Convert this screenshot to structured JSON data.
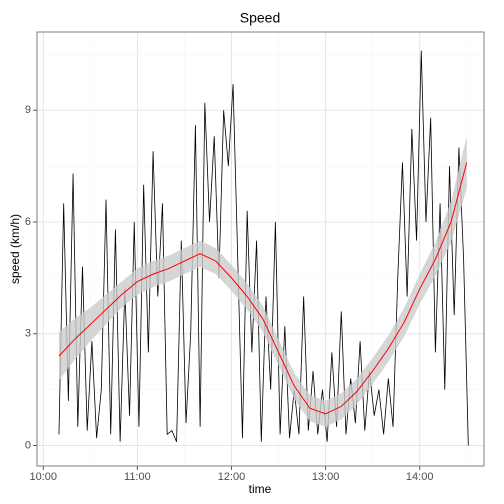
{
  "chart_data": {
    "type": "line",
    "title": "Speed",
    "x_label": "time",
    "y_label": "speed (km/h)",
    "xlim": [
      "09:56",
      "14:41"
    ],
    "xticks": [
      "10:00",
      "11:00",
      "12:00",
      "13:00",
      "14:00"
    ],
    "ylim": [
      -0.55,
      11.1
    ],
    "yticks": [
      0,
      3,
      6,
      9
    ],
    "grid": true,
    "series": [
      {
        "color": "#000000",
        "x": [
          "10:10",
          "10:13",
          "10:16",
          "10:19",
          "10:22",
          "10:25",
          "10:28",
          "10:31",
          "10:34",
          "10:37",
          "10:40",
          "10:43",
          "10:46",
          "10:49",
          "10:52",
          "10:55",
          "10:58",
          "11:01",
          "11:04",
          "11:07",
          "11:10",
          "11:13",
          "11:16",
          "11:19",
          "11:22",
          "11:25",
          "11:28",
          "11:31",
          "11:34",
          "11:37",
          "11:40",
          "11:43",
          "11:46",
          "11:49",
          "11:52",
          "11:55",
          "11:58",
          "12:01",
          "12:04",
          "12:07",
          "12:10",
          "12:13",
          "12:16",
          "12:19",
          "12:22",
          "12:25",
          "12:28",
          "12:31",
          "12:34",
          "12:37",
          "12:40",
          "12:43",
          "12:46",
          "12:49",
          "12:52",
          "12:55",
          "12:58",
          "13:01",
          "13:04",
          "13:07",
          "13:10",
          "13:13",
          "13:16",
          "13:19",
          "13:22",
          "13:25",
          "13:28",
          "13:31",
          "13:34",
          "13:37",
          "13:40",
          "13:43",
          "13:46",
          "13:49",
          "13:52",
          "13:55",
          "13:58",
          "14:01",
          "14:04",
          "14:07",
          "14:10",
          "14:13",
          "14:16",
          "14:19",
          "14:22",
          "14:25",
          "14:28",
          "14:31"
        ],
        "values": [
          0.3,
          6.5,
          1.2,
          7.3,
          0.5,
          4.8,
          0.4,
          2.8,
          0.2,
          1.5,
          6.6,
          0.3,
          5.8,
          0.1,
          4.2,
          0.8,
          6.0,
          0.5,
          7.0,
          2.5,
          7.9,
          4.0,
          6.5,
          0.3,
          0.4,
          0.1,
          5.5,
          0.6,
          3.0,
          8.6,
          0.5,
          9.2,
          6.0,
          8.3,
          4.5,
          9.0,
          7.5,
          9.7,
          5.0,
          0.2,
          6.3,
          2.5,
          5.5,
          0.1,
          4.0,
          1.5,
          6.0,
          0.3,
          3.2,
          0.2,
          1.5,
          0.3,
          4.0,
          0.4,
          2.0,
          0.3,
          1.5,
          0.1,
          2.5,
          0.5,
          3.6,
          0.3,
          1.8,
          0.6,
          2.8,
          0.4,
          2.0,
          0.8,
          1.5,
          0.3,
          1.8,
          0.5,
          4.5,
          7.6,
          4.0,
          8.5,
          5.5,
          10.6,
          6.0,
          8.8,
          2.5,
          6.5,
          1.5,
          7.5,
          3.5,
          8.0,
          5.0,
          0.0
        ]
      },
      {
        "color": "#ff0000",
        "band_color": "#cccccc",
        "x": [
          "10:10",
          "10:20",
          "10:30",
          "10:40",
          "10:50",
          "11:00",
          "11:10",
          "11:20",
          "11:30",
          "11:40",
          "11:50",
          "12:00",
          "12:10",
          "12:20",
          "12:30",
          "12:40",
          "12:50",
          "13:00",
          "13:10",
          "13:20",
          "13:30",
          "13:40",
          "13:50",
          "14:00",
          "14:10",
          "14:20",
          "14:30"
        ],
        "values": [
          2.4,
          2.85,
          3.25,
          3.65,
          4.05,
          4.4,
          4.6,
          4.75,
          4.95,
          5.15,
          4.95,
          4.5,
          4.0,
          3.4,
          2.5,
          1.6,
          1.0,
          0.85,
          1.05,
          1.45,
          2.0,
          2.6,
          3.3,
          4.2,
          5.0,
          6.0,
          7.6
        ],
        "lower": [
          1.75,
          2.3,
          2.8,
          3.25,
          3.7,
          4.05,
          4.25,
          4.4,
          4.6,
          4.8,
          4.6,
          4.15,
          3.65,
          3.05,
          2.15,
          1.25,
          0.65,
          0.5,
          0.7,
          1.1,
          1.65,
          2.25,
          2.92,
          3.8,
          4.55,
          5.45,
          6.9
        ],
        "upper": [
          3.05,
          3.4,
          3.7,
          4.05,
          4.4,
          4.75,
          4.95,
          5.1,
          5.3,
          5.5,
          5.3,
          4.85,
          4.35,
          3.75,
          2.85,
          1.95,
          1.35,
          1.2,
          1.4,
          1.8,
          2.35,
          2.95,
          3.68,
          4.6,
          5.45,
          6.55,
          8.3
        ]
      }
    ]
  }
}
